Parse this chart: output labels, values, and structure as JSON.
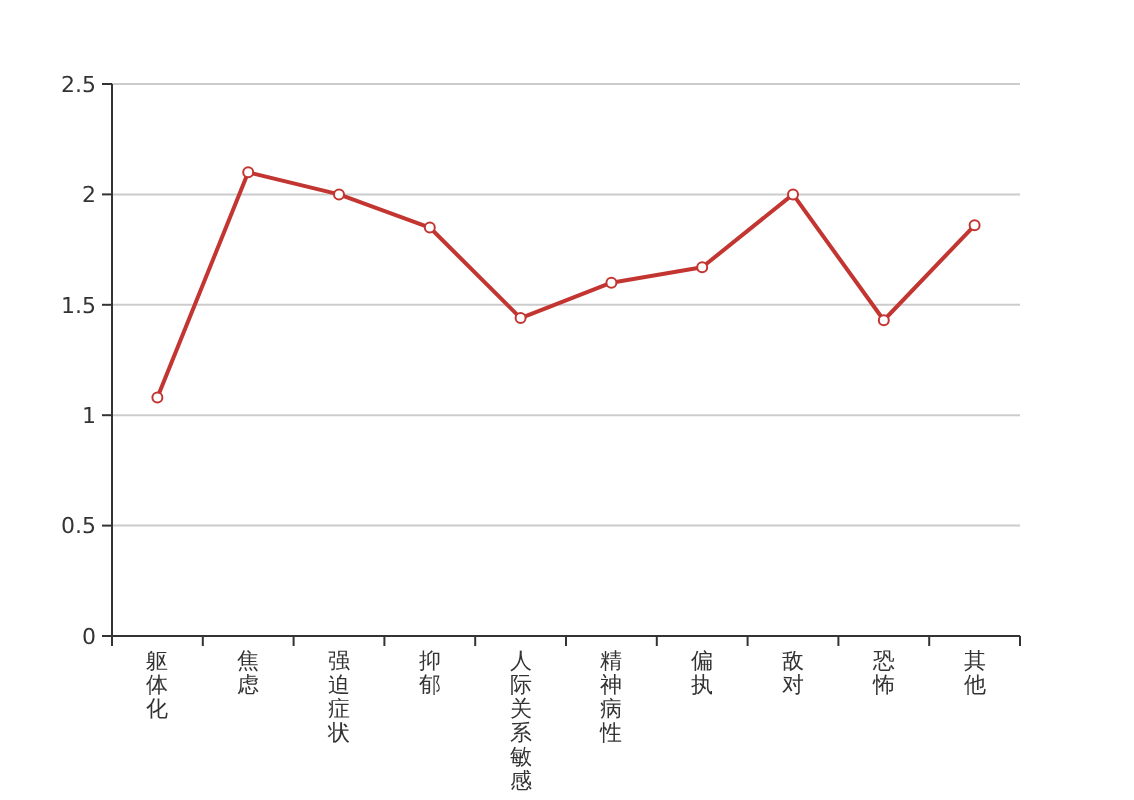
{
  "chart_data": {
    "type": "line",
    "categories": [
      "躯体化",
      "焦虑",
      "强迫症状",
      "抑郁",
      "人际关系敏感",
      "精神病性",
      "偏执",
      "敌对",
      "恐怖",
      "其他"
    ],
    "series": [
      {
        "color": "#c23531",
        "values": [
          1.08,
          2.1,
          2.0,
          1.85,
          1.44,
          1.6,
          1.67,
          2.0,
          1.43,
          1.86
        ]
      }
    ],
    "ylim": [
      0,
      2.5
    ],
    "yticks": [
      0,
      0.5,
      1,
      1.5,
      2,
      2.5
    ],
    "grid": "y",
    "marker": "circle",
    "line_style": "solid"
  }
}
